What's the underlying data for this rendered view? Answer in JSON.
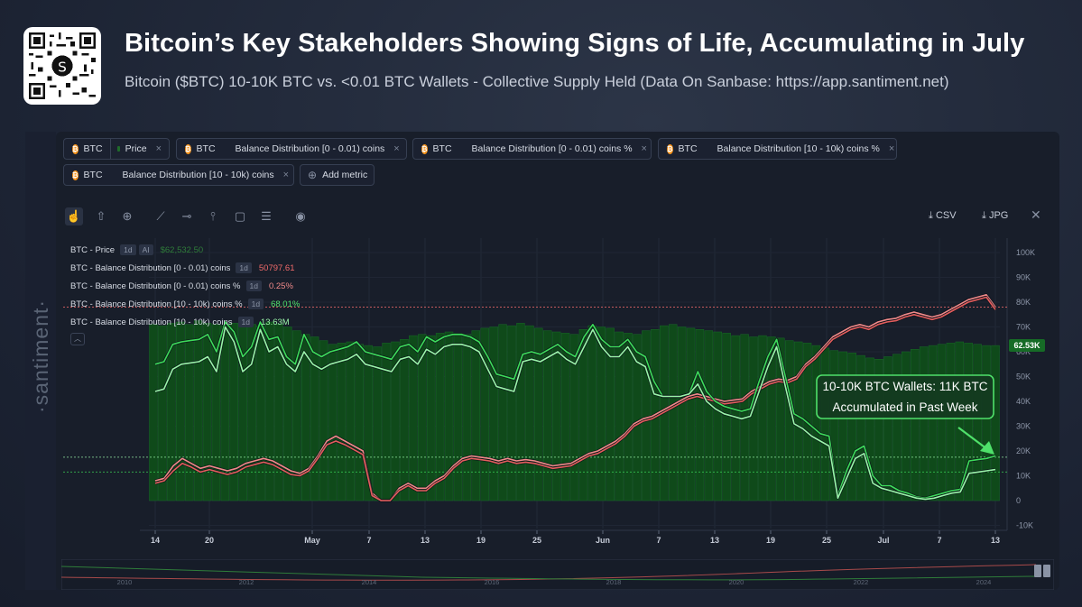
{
  "header": {
    "title": "Bitcoin’s Key Stakeholders Showing Signs of Life, Accumulating in July",
    "subtitle": "Bitcoin ($BTC) 10-10K BTC vs. <0.01 BTC Wallets - Collective Supply Held (Data On Sanbase: https://app.santiment.net)"
  },
  "brand": "·santiment·",
  "qr_label": "S",
  "metric_chips": [
    {
      "asset": "BTC",
      "label": "Price",
      "color": "#1f6b2a"
    },
    {
      "asset": "BTC",
      "label": "Balance Distribution [0 - 0.01) coins",
      "color": "#e35d5d"
    },
    {
      "asset": "BTC",
      "label": "Balance Distribution [0 - 0.01) coins %",
      "color": "#f08a8a"
    },
    {
      "asset": "BTC",
      "label": "Balance Distribution [10 - 10k) coins %",
      "color": "#3ddc5a"
    },
    {
      "asset": "BTC",
      "label": "Balance Distribution [10 - 10k) coins",
      "color": "#8cf59f"
    }
  ],
  "add_metric_label": "Add metric",
  "toolbar": {
    "csv_label": "CSV",
    "jpg_label": "JPG"
  },
  "legend": [
    {
      "label": "BTC - Price",
      "tag1": "1d",
      "tag2": "AI",
      "value": "$62,532.50",
      "color": "#2f7d3a"
    },
    {
      "label": "BTC - Balance Distribution [0 - 0.01) coins",
      "tag1": "1d",
      "value": "50797.61",
      "color": "#f06a6a"
    },
    {
      "label": "BTC - Balance Distribution [0 - 0.01) coins %",
      "tag1": "1d",
      "value": "0.25%",
      "color": "#f08a8a"
    },
    {
      "label": "BTC - Balance Distribution [10 - 10k) coins %",
      "tag1": "1d",
      "value": "68.01%",
      "color": "#4fe06a"
    },
    {
      "label": "BTC - Balance Distribution [10 - 10k) coins",
      "tag1": "1d",
      "value": "13.63M",
      "color": "#9af5a9"
    }
  ],
  "annotation": {
    "line1": "10-10K BTC Wallets: 11K BTC",
    "line2": "Accumulated in Past Week"
  },
  "chart_data": {
    "type": "bar",
    "x_ticks": [
      "14",
      "20",
      "May",
      "7",
      "13",
      "19",
      "25",
      "Jun",
      "7",
      "13",
      "19",
      "25",
      "Jul",
      "7",
      "13"
    ],
    "y_ticks": [
      "100K",
      "90K",
      "80K",
      "70K",
      "60K",
      "50K",
      "40K",
      "30K",
      "20K",
      "10K",
      "0",
      "-10K"
    ],
    "ylim": [
      -10000,
      105000
    ],
    "price_badge": "62.53K",
    "price_bars": [
      71000,
      70500,
      71500,
      72000,
      71000,
      72500,
      71500,
      71000,
      70500,
      71500,
      72500,
      71000,
      70500,
      72000,
      71000,
      70000,
      68500,
      67000,
      66000,
      64500,
      63000,
      63500,
      64000,
      63000,
      62500,
      62000,
      63500,
      64000,
      65000,
      66500,
      67000,
      66500,
      67500,
      68000,
      67500,
      67000,
      68500,
      69500,
      70000,
      71000,
      70500,
      71500,
      70500,
      69500,
      68500,
      68000,
      67500,
      67000,
      69000,
      70500,
      70000,
      69500,
      68000,
      67500,
      67000,
      68500,
      69000,
      70500,
      71000,
      70000,
      69500,
      69000,
      68500,
      68000,
      67500,
      66500,
      67000,
      66000,
      66500,
      66000,
      65500,
      64500,
      64000,
      63500,
      62500,
      61500,
      60500,
      60000,
      59500,
      58500,
      57500,
      57000,
      58000,
      59000,
      60000,
      61000,
      62000,
      62500,
      63000,
      63500,
      64000,
      63500,
      63000,
      62500,
      62500
    ],
    "series": [
      {
        "name": "BTC - Balance Distribution [0 - 0.01) coins %",
        "color": "#f08a8a",
        "values": [
          8000,
          9000,
          14000,
          17000,
          15000,
          13000,
          14000,
          13000,
          12000,
          13000,
          15000,
          16000,
          17000,
          16000,
          14000,
          12000,
          11000,
          13000,
          18000,
          24000,
          26000,
          24000,
          22000,
          20000,
          3000,
          0,
          0,
          5000,
          7000,
          5000,
          5000,
          8000,
          10000,
          14000,
          17000,
          18000,
          17500,
          17000,
          16000,
          17000,
          16000,
          16500,
          16000,
          15000,
          14000,
          14500,
          15000,
          17000,
          19000,
          20000,
          22000,
          24000,
          27000,
          31000,
          33000,
          34000,
          36000,
          38000,
          40000,
          42000,
          43000,
          42000,
          41000,
          40000,
          40500,
          41000,
          44000,
          46000,
          48000,
          49000,
          48500,
          50000,
          55000,
          58000,
          62000,
          66000,
          68000,
          70000,
          71000,
          70000,
          72000,
          73000,
          73500,
          75000,
          76000,
          75000,
          74000,
          75000,
          77000,
          79000,
          81000,
          82000,
          83000,
          78000
        ]
      },
      {
        "name": "BTC - Balance Distribution [0 - 0.01) coins",
        "color": "#e35d5d",
        "values": [
          7000,
          8000,
          12000,
          15000,
          13500,
          11500,
          12500,
          11500,
          10500,
          11500,
          13500,
          14500,
          15500,
          14500,
          12500,
          10500,
          10000,
          12000,
          17000,
          22500,
          24000,
          22500,
          20500,
          18500,
          2000,
          0,
          0,
          4000,
          6000,
          4000,
          4000,
          7000,
          9000,
          13000,
          16000,
          17000,
          16500,
          16000,
          15000,
          16000,
          15000,
          15500,
          15000,
          14000,
          13000,
          13500,
          14000,
          16000,
          18000,
          19000,
          21000,
          23000,
          26000,
          30000,
          32000,
          33000,
          35000,
          37000,
          39000,
          41000,
          42000,
          41000,
          40000,
          39000,
          39500,
          40000,
          43000,
          45000,
          47000,
          48000,
          47500,
          49000,
          54000,
          57000,
          61000,
          65000,
          67000,
          69000,
          70000,
          69000,
          71000,
          72000,
          72500,
          74000,
          75000,
          74000,
          73000,
          74000,
          76000,
          78000,
          80000,
          81000,
          82000,
          77000
        ]
      },
      {
        "name": "BTC - Balance Distribution [10 - 10k) coins %",
        "color": "#3ddc5a",
        "values": [
          55000,
          56000,
          63000,
          64000,
          64500,
          65000,
          67000,
          60000,
          72000,
          68000,
          58000,
          62000,
          72000,
          65000,
          66000,
          58000,
          55000,
          67000,
          60000,
          58000,
          60000,
          61000,
          62000,
          64000,
          60000,
          59000,
          58000,
          57000,
          62000,
          63000,
          60000,
          66000,
          64000,
          66000,
          67000,
          67000,
          66000,
          64000,
          58000,
          51000,
          50000,
          49000,
          59000,
          60000,
          59000,
          61000,
          63000,
          60000,
          58000,
          66000,
          71000,
          65000,
          62000,
          62000,
          65000,
          60000,
          58000,
          48000,
          42000,
          42000,
          42000,
          43000,
          52000,
          44000,
          40000,
          38000,
          37000,
          36000,
          37000,
          48000,
          58000,
          65000,
          50000,
          35000,
          33000,
          30000,
          27000,
          26000,
          2000,
          12000,
          20000,
          22000,
          10000,
          6000,
          6000,
          4000,
          3000,
          1500,
          1000,
          2000,
          3000,
          4000,
          4500,
          16000,
          16500,
          17000,
          18000
        ]
      },
      {
        "name": "BTC - Balance Distribution [10 - 10k) coins",
        "color": "#9af5a9",
        "values": [
          44000,
          45000,
          53000,
          55000,
          55500,
          56000,
          58000,
          52000,
          70000,
          64000,
          52000,
          55000,
          69000,
          60000,
          62000,
          55000,
          52000,
          60000,
          55000,
          53000,
          55000,
          56000,
          57000,
          59000,
          55000,
          54000,
          53000,
          52000,
          57000,
          58000,
          55000,
          61000,
          59000,
          62000,
          63000,
          63000,
          62000,
          60000,
          53000,
          46000,
          45000,
          44000,
          56000,
          57000,
          56000,
          58000,
          60000,
          57000,
          55000,
          62000,
          69000,
          62000,
          58000,
          58000,
          62000,
          56000,
          54000,
          43000,
          42000,
          42000,
          42000,
          43000,
          47000,
          40000,
          37000,
          35000,
          34000,
          33000,
          34000,
          44000,
          54000,
          62000,
          46000,
          31000,
          29000,
          26000,
          24000,
          22000,
          1000,
          9000,
          17000,
          19000,
          7000,
          5000,
          4000,
          3000,
          2000,
          1000,
          500,
          1000,
          2000,
          3000,
          3500,
          11000,
          11500,
          12000,
          12500
        ]
      }
    ]
  },
  "navigator": {
    "years": [
      "2010",
      "2012",
      "2014",
      "2016",
      "2018",
      "2020",
      "2022",
      "2024"
    ]
  }
}
